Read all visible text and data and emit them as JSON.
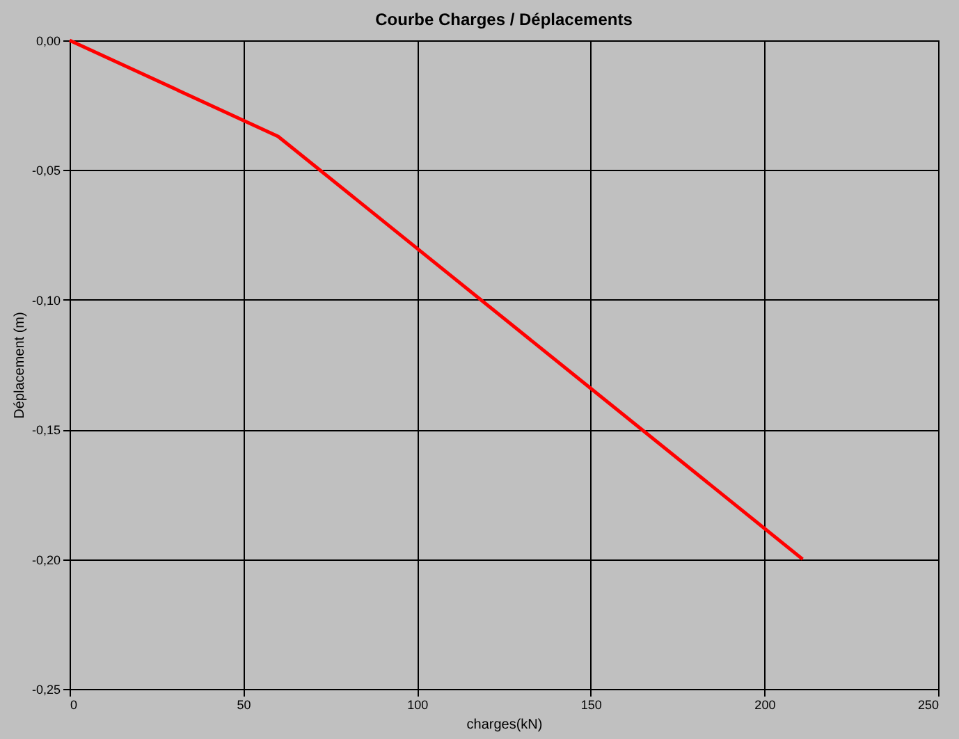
{
  "chart_data": {
    "type": "line",
    "title": "Courbe Charges / Déplacements",
    "xlabel": "charges(kN)",
    "ylabel": "Déplacement (m)",
    "x": [
      0,
      60,
      211
    ],
    "series": [
      {
        "color": "#ff0000",
        "values": [
          0,
          -0.037,
          -0.2
        ]
      }
    ],
    "xlim": [
      0,
      250
    ],
    "xticks": [
      0,
      50,
      100,
      150,
      200,
      250
    ],
    "ylim": [
      -0.25,
      0
    ],
    "yticks": [
      {
        "value": 0,
        "label": "0,00"
      },
      {
        "value": -0.05,
        "label": "-0,05"
      },
      {
        "value": -0.1,
        "label": "-0,10"
      },
      {
        "value": -0.15,
        "label": "-0,15"
      },
      {
        "value": -0.2,
        "label": "-0,20"
      },
      {
        "value": -0.25,
        "label": "-0,25"
      }
    ],
    "grid": true,
    "marker": "none",
    "line_style": "solid"
  }
}
